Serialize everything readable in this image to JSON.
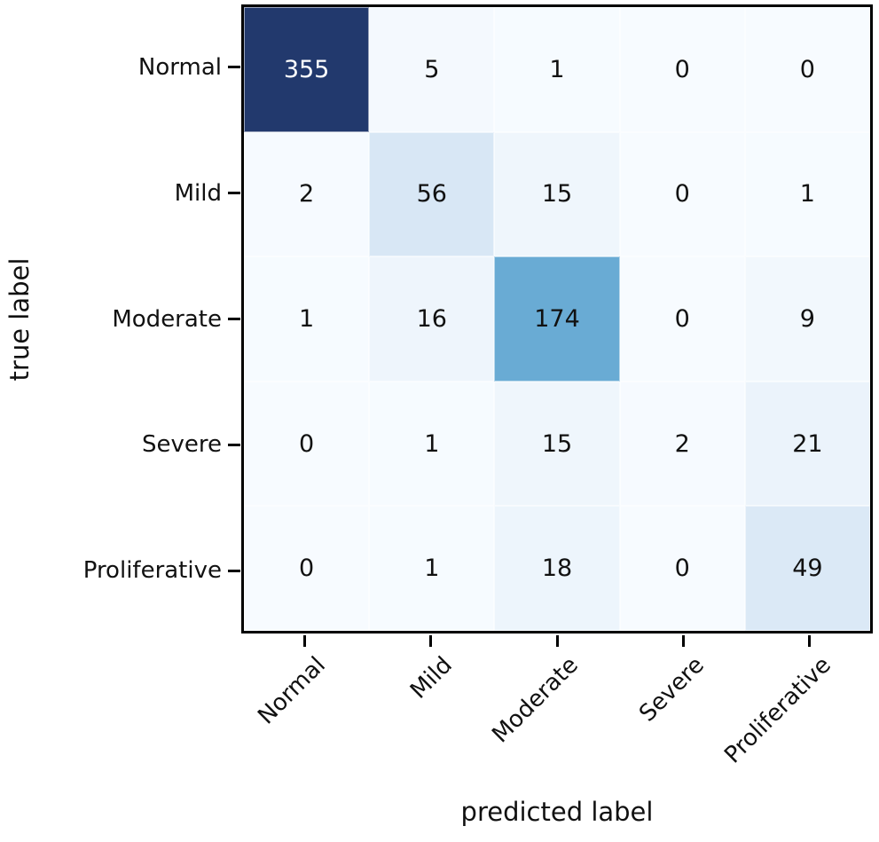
{
  "chart_data": {
    "type": "heatmap",
    "title": "",
    "xlabel": "predicted label",
    "ylabel": "true label",
    "categories": [
      "Normal",
      "Mild",
      "Moderate",
      "Severe",
      "Proliferative"
    ],
    "matrix": [
      [
        355,
        5,
        1,
        0,
        0
      ],
      [
        2,
        56,
        15,
        0,
        1
      ],
      [
        1,
        16,
        174,
        0,
        9
      ],
      [
        0,
        1,
        15,
        2,
        21
      ],
      [
        0,
        1,
        18,
        0,
        49
      ]
    ],
    "vmin": 0,
    "vmax": 355,
    "colormap": "Blues",
    "colormap_stops": [
      {
        "t": 0.0,
        "color": "#f7fbff"
      },
      {
        "t": 0.125,
        "color": "#deebf7"
      },
      {
        "t": 0.25,
        "color": "#c6dbef"
      },
      {
        "t": 0.375,
        "color": "#9ecae1"
      },
      {
        "t": 0.5,
        "color": "#65a8d3"
      },
      {
        "t": 0.625,
        "color": "#4292c6"
      },
      {
        "t": 0.75,
        "color": "#2171b5"
      },
      {
        "t": 0.875,
        "color": "#1a4f97"
      },
      {
        "t": 1.0,
        "color": "#22396d"
      }
    ],
    "annotation_text_threshold": 0.6,
    "legend_position": "none",
    "grid": false,
    "colors": {
      "text_dark": "#111111",
      "text_light": "#ffffff",
      "axis": "#000000"
    }
  }
}
